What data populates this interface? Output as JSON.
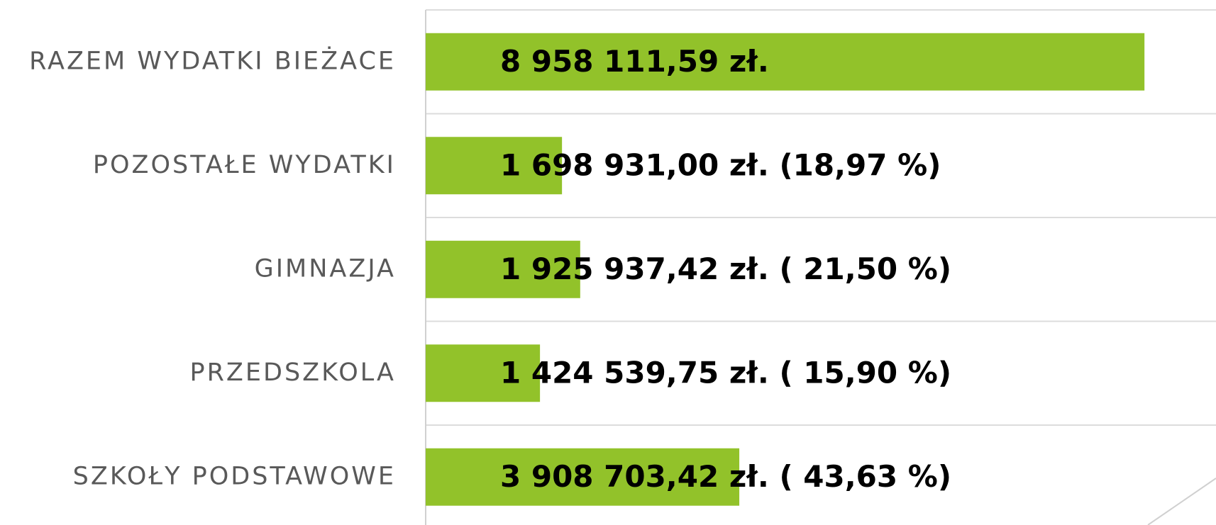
{
  "chart_data": {
    "type": "barh",
    "categories": [
      "RAZEM WYDATKI BIEŻACE",
      "POZOSTAŁE WYDATKI",
      "GIMNAZJA",
      "PRZEDSZKOLA",
      "SZKOŁY PODSTAWOWE"
    ],
    "values": [
      8958111.59,
      1698931.0,
      1925937.42,
      1424539.75,
      3908703.42
    ],
    "value_labels": [
      "8 958 111,59 zł.",
      "1 698 931,00 zł. (18,97 %)",
      "1 925 937,42 zł. ( 21,50 %)",
      "1 424 539,75 zł. ( 15,90 %)",
      "3 908 703,42 zł. ( 43,63 %)"
    ],
    "color": "#92c22a",
    "xlim": [
      0,
      10000000
    ],
    "grid": true
  }
}
